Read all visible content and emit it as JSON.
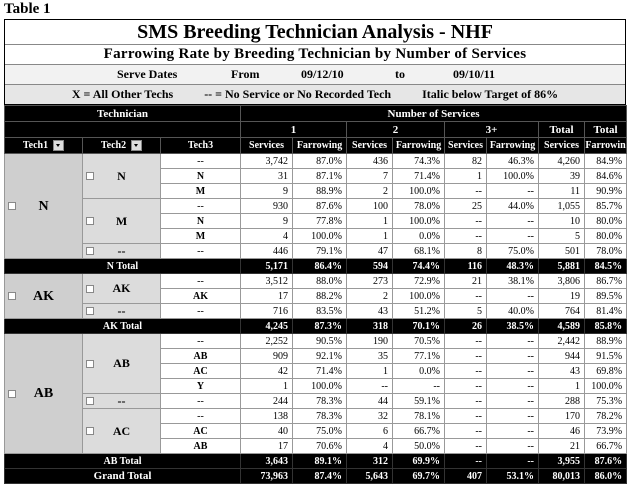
{
  "caption": "Table 1",
  "header": {
    "title": "SMS Breeding Technician Analysis - NHF",
    "subtitle": "Farrowing Rate by Breeding Technician by Number of Services",
    "serve_dates": {
      "label": "Serve Dates",
      "from_label": "From",
      "from": "09/12/10",
      "to_label": "to",
      "to": "09/10/11"
    },
    "legend": [
      "X = All Other Techs",
      "-- = No Service or No Recorded Tech",
      "Italic below Target of 86%"
    ]
  },
  "table": {
    "group_headers": [
      "Technician",
      "Number of Services"
    ],
    "service_headers": [
      "1",
      "2",
      "3+",
      "Total",
      "Total"
    ],
    "columns": [
      "Tech1",
      "Tech2",
      "Tech3",
      "Services",
      "Farrowing",
      "Services",
      "Farrowing",
      "Services",
      "Farrowing",
      "Services",
      "Farrowin"
    ],
    "groups": [
      {
        "tech1": "N",
        "subgroups": [
          {
            "tech2": "N",
            "rows": [
              {
                "tech3": "--",
                "cells": [
                  "3,742",
                  "87.0%",
                  "436",
                  "74.3%",
                  "82",
                  "46.3%",
                  "4,260",
                  "84.9%"
                ]
              },
              {
                "tech3": "N",
                "cells": [
                  "31",
                  "87.1%",
                  "7",
                  "71.4%",
                  "1",
                  "100.0%",
                  "39",
                  "84.6%"
                ]
              },
              {
                "tech3": "M",
                "cells": [
                  "9",
                  "88.9%",
                  "2",
                  "100.0%",
                  "--",
                  "--",
                  "11",
                  "90.9%"
                ]
              }
            ]
          },
          {
            "tech2": "M",
            "rows": [
              {
                "tech3": "--",
                "cells": [
                  "930",
                  "87.6%",
                  "100",
                  "78.0%",
                  "25",
                  "44.0%",
                  "1,055",
                  "85.7%"
                ]
              },
              {
                "tech3": "N",
                "cells": [
                  "9",
                  "77.8%",
                  "1",
                  "100.0%",
                  "--",
                  "--",
                  "10",
                  "80.0%"
                ]
              },
              {
                "tech3": "M",
                "cells": [
                  "4",
                  "100.0%",
                  "1",
                  "0.0%",
                  "--",
                  "--",
                  "5",
                  "80.0%"
                ]
              }
            ]
          },
          {
            "tech2": "--",
            "rows": [
              {
                "tech3": "--",
                "cells": [
                  "446",
                  "79.1%",
                  "47",
                  "68.1%",
                  "8",
                  "75.0%",
                  "501",
                  "78.0%"
                ]
              }
            ]
          }
        ],
        "total": {
          "label": "N Total",
          "cells": [
            "5,171",
            "86.4%",
            "594",
            "74.4%",
            "116",
            "48.3%",
            "5,881",
            "84.5%"
          ]
        }
      },
      {
        "tech1": "AK",
        "subgroups": [
          {
            "tech2": "AK",
            "rows": [
              {
                "tech3": "--",
                "cells": [
                  "3,512",
                  "88.0%",
                  "273",
                  "72.9%",
                  "21",
                  "38.1%",
                  "3,806",
                  "86.7%"
                ]
              },
              {
                "tech3": "AK",
                "cells": [
                  "17",
                  "88.2%",
                  "2",
                  "100.0%",
                  "--",
                  "--",
                  "19",
                  "89.5%"
                ]
              }
            ]
          },
          {
            "tech2": "--",
            "rows": [
              {
                "tech3": "--",
                "cells": [
                  "716",
                  "83.5%",
                  "43",
                  "51.2%",
                  "5",
                  "40.0%",
                  "764",
                  "81.4%"
                ]
              }
            ]
          }
        ],
        "total": {
          "label": "AK Total",
          "cells": [
            "4,245",
            "87.3%",
            "318",
            "70.1%",
            "26",
            "38.5%",
            "4,589",
            "85.8%"
          ]
        }
      },
      {
        "tech1": "AB",
        "subgroups": [
          {
            "tech2": "AB",
            "rows": [
              {
                "tech3": "--",
                "cells": [
                  "2,252",
                  "90.5%",
                  "190",
                  "70.5%",
                  "--",
                  "--",
                  "2,442",
                  "88.9%"
                ]
              },
              {
                "tech3": "AB",
                "cells": [
                  "909",
                  "92.1%",
                  "35",
                  "77.1%",
                  "--",
                  "--",
                  "944",
                  "91.5%"
                ]
              },
              {
                "tech3": "AC",
                "cells": [
                  "42",
                  "71.4%",
                  "1",
                  "0.0%",
                  "--",
                  "--",
                  "43",
                  "69.8%"
                ]
              },
              {
                "tech3": "Y",
                "cells": [
                  "1",
                  "100.0%",
                  "--",
                  "--",
                  "--",
                  "--",
                  "1",
                  "100.0%"
                ]
              }
            ]
          },
          {
            "tech2": "--",
            "rows": [
              {
                "tech3": "--",
                "cells": [
                  "244",
                  "78.3%",
                  "44",
                  "59.1%",
                  "--",
                  "--",
                  "288",
                  "75.3%"
                ]
              }
            ]
          },
          {
            "tech2": "AC",
            "rows": [
              {
                "tech3": "--",
                "cells": [
                  "138",
                  "78.3%",
                  "32",
                  "78.1%",
                  "--",
                  "--",
                  "170",
                  "78.2%"
                ]
              },
              {
                "tech3": "AC",
                "cells": [
                  "40",
                  "75.0%",
                  "6",
                  "66.7%",
                  "--",
                  "--",
                  "46",
                  "73.9%"
                ]
              },
              {
                "tech3": "AB",
                "cells": [
                  "17",
                  "70.6%",
                  "4",
                  "50.0%",
                  "--",
                  "--",
                  "21",
                  "66.7%"
                ]
              }
            ]
          }
        ],
        "total": {
          "label": "AB Total",
          "cells": [
            "3,643",
            "89.1%",
            "312",
            "69.9%",
            "--",
            "--",
            "3,955",
            "87.6%"
          ]
        }
      }
    ],
    "grand_total": {
      "label": "Grand Total",
      "cells": [
        "73,963",
        "87.4%",
        "5,643",
        "69.7%",
        "407",
        "53.1%",
        "80,013",
        "86.0%"
      ]
    }
  }
}
